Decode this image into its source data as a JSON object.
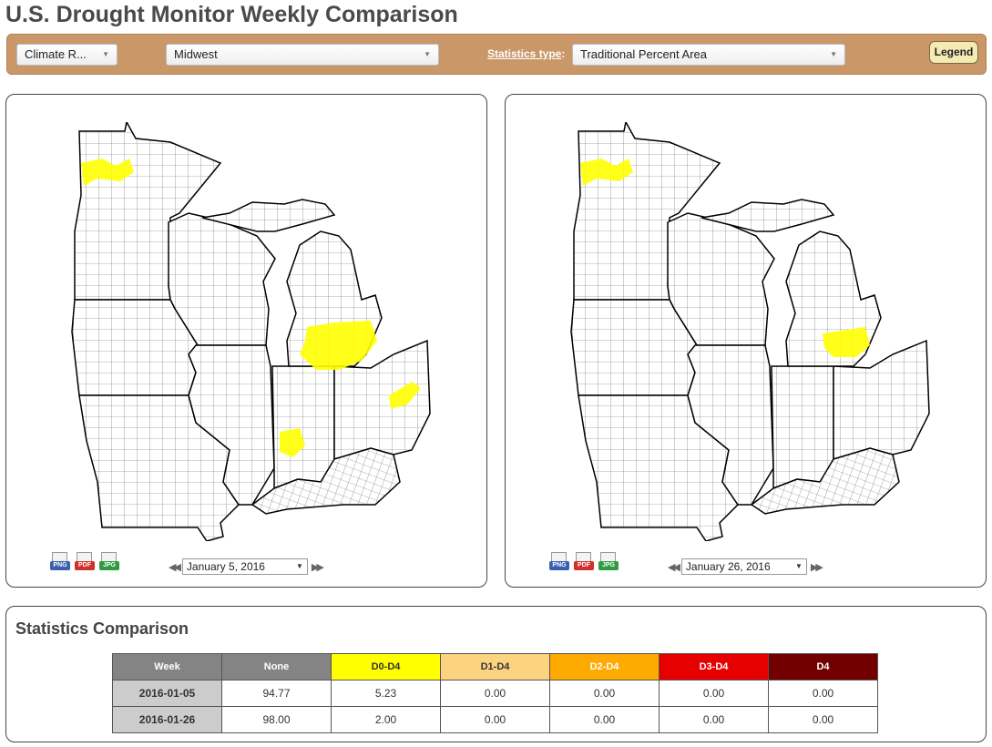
{
  "title": "U.S. Drought Monitor Weekly Comparison",
  "toolbar": {
    "region_select": "Climate R...",
    "area_select": "Midwest",
    "stat_label": "Statistics type",
    "stat_colon": ":",
    "stat_select": "Traditional Percent Area",
    "legend_label": "Legend"
  },
  "left_panel": {
    "date": "January 5, 2016",
    "exports": [
      "PNG",
      "PDF",
      "JPG"
    ]
  },
  "right_panel": {
    "date": "January 26, 2016",
    "exports": [
      "PNG",
      "PDF",
      "JPG"
    ]
  },
  "colors": {
    "drought_d0": "#ffff00",
    "toolbar": "#c99768"
  },
  "stats": {
    "heading": "Statistics Comparison",
    "headers": [
      "Week",
      "None",
      "D0-D4",
      "D1-D4",
      "D2-D4",
      "D3-D4",
      "D4"
    ],
    "rows": [
      [
        "2016-01-05",
        "94.77",
        "5.23",
        "0.00",
        "0.00",
        "0.00",
        "0.00"
      ],
      [
        "2016-01-26",
        "98.00",
        "2.00",
        "0.00",
        "0.00",
        "0.00",
        "0.00"
      ]
    ]
  }
}
